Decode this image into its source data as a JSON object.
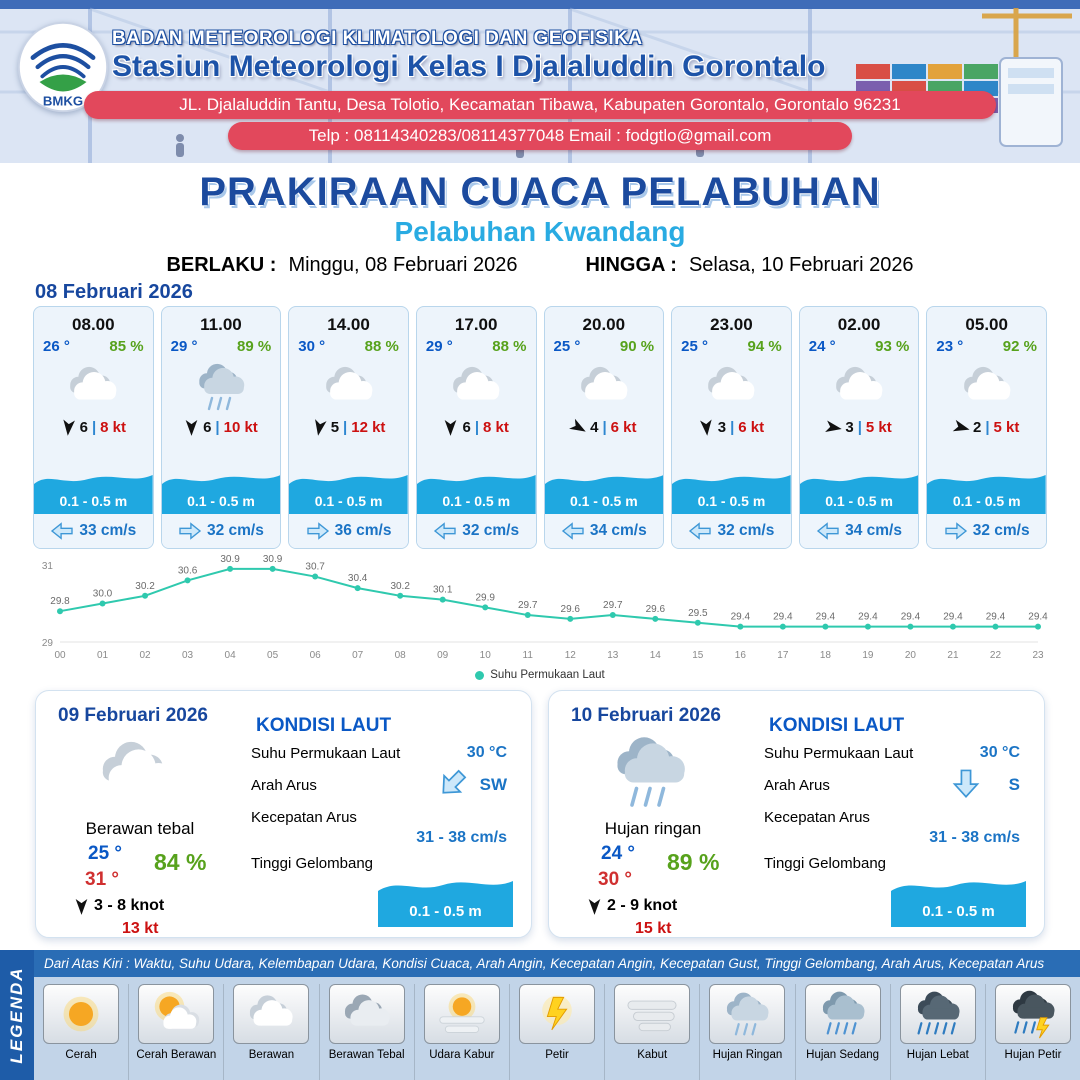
{
  "header": {
    "agency": "BADAN METEOROLOGI KLIMATOLOGI DAN GEOFISIKA",
    "station": "Stasiun Meteorologi Kelas I Djalaluddin Gorontalo",
    "address": "JL. Djalaluddin Tantu, Desa Tolotio, Kecamatan Tibawa, Kabupaten Gorontalo, Gorontalo 96231",
    "contact": "Telp : 08114340283/08114377048 Email : fodgtlo@gmail.com",
    "logo_text": "BMKG"
  },
  "title": {
    "main": "PRAKIRAAN CUACA PELABUHAN",
    "port": "Pelabuhan Kwandang",
    "valid_label": "BERLAKU :",
    "valid_value": "Minggu, 08 Februari 2026",
    "until_label": "HINGGA :",
    "until_value": "Selasa, 10 Februari 2026"
  },
  "forecast_date": "08 Februari 2026",
  "ui": {
    "pipe": "|"
  },
  "colors": {
    "navy": "#17479e",
    "accent_blue": "#1fa8e0",
    "cyan": "#29abe2",
    "red_pill": "#e2485c",
    "green": "#57a21c",
    "teal": "#2fc9ae",
    "red_text": "#cc1111"
  },
  "cards": [
    {
      "time": "08.00",
      "temp": "26 °",
      "rh": "85 %",
      "icon": "berawan",
      "wind_rot": 185,
      "wind_bft": "6",
      "wind_kt": "8 kt",
      "wave": "0.1 - 0.5 m",
      "current_dir": "left",
      "current": "33 cm/s"
    },
    {
      "time": "11.00",
      "temp": "29 °",
      "rh": "89 %",
      "icon": "hujan-ringan",
      "wind_rot": 180,
      "wind_bft": "6",
      "wind_kt": "10 kt",
      "wave": "0.1 - 0.5 m",
      "current_dir": "right",
      "current": "32 cm/s"
    },
    {
      "time": "14.00",
      "temp": "30 °",
      "rh": "88 %",
      "icon": "berawan",
      "wind_rot": 190,
      "wind_bft": "5",
      "wind_kt": "12 kt",
      "wave": "0.1 - 0.5 m",
      "current_dir": "right",
      "current": "36 cm/s"
    },
    {
      "time": "17.00",
      "temp": "29 °",
      "rh": "88 %",
      "icon": "berawan",
      "wind_rot": 180,
      "wind_bft": "6",
      "wind_kt": "8 kt",
      "wave": "0.1 - 0.5 m",
      "current_dir": "left",
      "current": "32 cm/s"
    },
    {
      "time": "20.00",
      "temp": "25 °",
      "rh": "90 %",
      "icon": "berawan",
      "wind_rot": 120,
      "wind_bft": "4",
      "wind_kt": "6 kt",
      "wave": "0.1 - 0.5 m",
      "current_dir": "left",
      "current": "34 cm/s"
    },
    {
      "time": "23.00",
      "temp": "25 °",
      "rh": "94 %",
      "icon": "berawan",
      "wind_rot": 175,
      "wind_bft": "3",
      "wind_kt": "6 kt",
      "wave": "0.1 - 0.5 m",
      "current_dir": "left",
      "current": "32 cm/s"
    },
    {
      "time": "02.00",
      "temp": "24 °",
      "rh": "93 %",
      "icon": "berawan",
      "wind_rot": 100,
      "wind_bft": "3",
      "wind_kt": "5 kt",
      "wave": "0.1 - 0.5 m",
      "current_dir": "left",
      "current": "34 cm/s"
    },
    {
      "time": "05.00",
      "temp": "23 °",
      "rh": "92 %",
      "icon": "berawan",
      "wind_rot": 105,
      "wind_bft": "2",
      "wind_kt": "5 kt",
      "wave": "0.1 - 0.5 m",
      "current_dir": "right",
      "current": "32 cm/s"
    }
  ],
  "chart_data": {
    "type": "line",
    "series_name": "Suhu Permukaan Laut",
    "x": [
      "00",
      "01",
      "02",
      "03",
      "04",
      "05",
      "06",
      "07",
      "08",
      "09",
      "10",
      "11",
      "12",
      "13",
      "14",
      "15",
      "16",
      "17",
      "18",
      "19",
      "20",
      "21",
      "22",
      "23"
    ],
    "values": [
      29.8,
      30.0,
      30.2,
      30.6,
      30.9,
      30.9,
      30.7,
      30.4,
      30.2,
      30.1,
      29.9,
      29.7,
      29.6,
      29.7,
      29.6,
      29.5,
      29.4,
      29.4,
      29.4,
      29.4,
      29.4,
      29.4,
      29.4,
      29.4
    ],
    "ylim": [
      29,
      31
    ],
    "yticks": [
      29,
      31
    ],
    "line_color": "#2fc9ae",
    "legend_position": "bottom",
    "grid": false,
    "title": "",
    "xlabel": "",
    "ylabel": ""
  },
  "days": [
    {
      "date": "09 Februari 2026",
      "icon": "berawan",
      "desc": "Berawan tebal",
      "tmin": "25 °",
      "tmax": "31 °",
      "rh": "84 %",
      "wind_rot": 180,
      "wind": "3 - 8 knot",
      "gust": "13 kt",
      "sea_title": "KONDISI LAUT",
      "sst_label": "Suhu Permukaan Laut",
      "sst": "30 °C",
      "dir_label": "Arah Arus",
      "dir": "SW",
      "dir_rot": 135,
      "spd_label": "Kecepatan Arus",
      "spd": "31 - 38 cm/s",
      "wave_label": "Tinggi Gelombang",
      "wave": "0.1 - 0.5 m"
    },
    {
      "date": "10 Februari 2026",
      "icon": "hujan-ringan",
      "desc": "Hujan ringan",
      "tmin": "24 °",
      "tmax": "30 °",
      "rh": "89 %",
      "wind_rot": 180,
      "wind": "2 - 9 knot",
      "gust": "15 kt",
      "sea_title": "KONDISI LAUT",
      "sst_label": "Suhu Permukaan Laut",
      "sst": "30 °C",
      "dir_label": "Arah Arus",
      "dir": "S",
      "dir_rot": 90,
      "spd_label": "Kecepatan Arus",
      "spd": "31 - 38 cm/s",
      "wave_label": "Tinggi Gelombang",
      "wave": "0.1 - 0.5 m"
    }
  ],
  "legend": {
    "title": "LEGENDA",
    "note": "Dari Atas Kiri : Waktu, Suhu Udara, Kelembapan Udara, Kondisi Cuaca, Arah Angin, Kecepatan Angin, Kecepatan Gust, Tinggi Gelombang, Arah Arus, Kecepatan Arus",
    "items": [
      {
        "label": "Cerah",
        "icon": "cerah"
      },
      {
        "label": "Cerah Berawan",
        "icon": "cerah-berawan"
      },
      {
        "label": "Berawan",
        "icon": "berawan"
      },
      {
        "label": "Berawan Tebal",
        "icon": "berawan-tebal"
      },
      {
        "label": "Udara Kabur",
        "icon": "udara-kabur"
      },
      {
        "label": "Petir",
        "icon": "petir"
      },
      {
        "label": "Kabut",
        "icon": "kabut"
      },
      {
        "label": "Hujan Ringan",
        "icon": "hujan-ringan"
      },
      {
        "label": "Hujan Sedang",
        "icon": "hujan-sedang"
      },
      {
        "label": "Hujan Lebat",
        "icon": "hujan-lebat"
      },
      {
        "label": "Hujan Petir",
        "icon": "hujan-petir"
      }
    ]
  }
}
